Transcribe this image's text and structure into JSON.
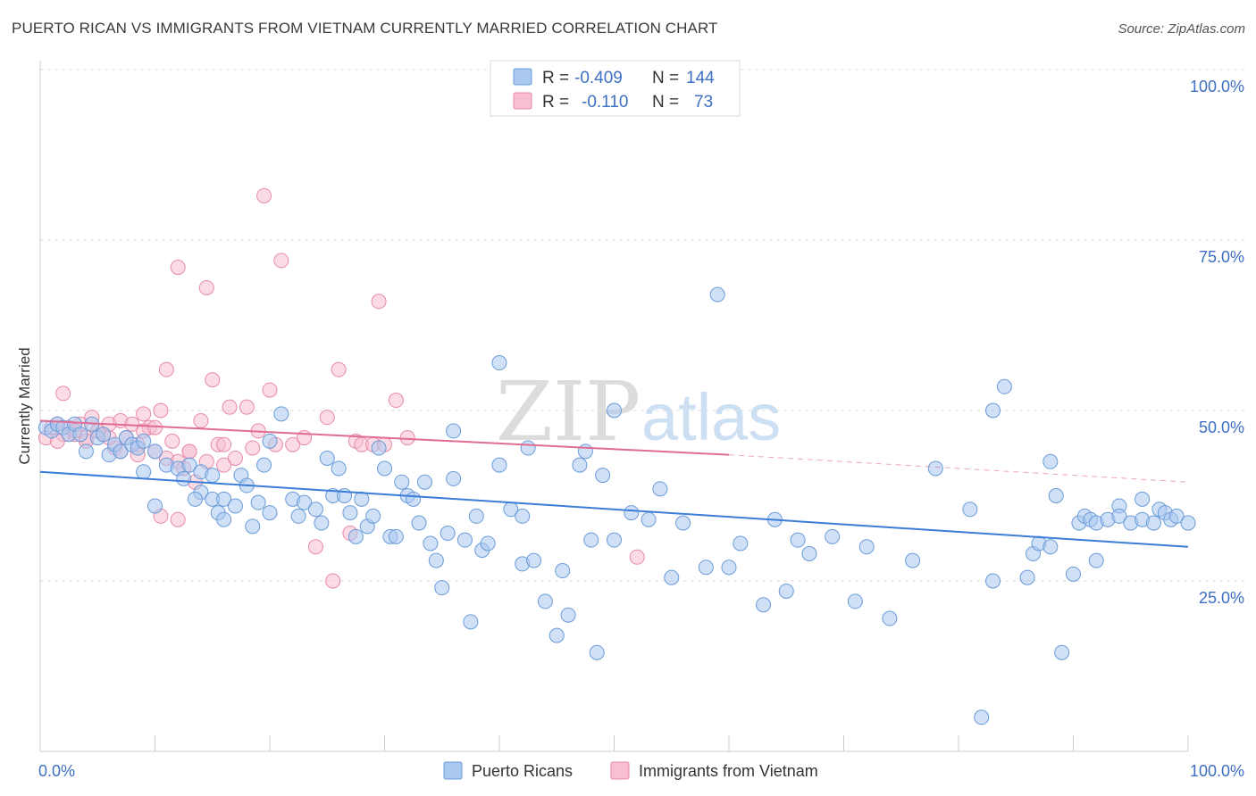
{
  "header": {
    "title": "PUERTO RICAN VS IMMIGRANTS FROM VIETNAM CURRENTLY MARRIED CORRELATION CHART",
    "source": "Source: ZipAtlas.com"
  },
  "watermark": {
    "zip": "ZIP",
    "atlas": "atlas"
  },
  "legend_top": {
    "rows": [
      {
        "r_label": "R =",
        "r_value": "-0.409",
        "n_label": "N =",
        "n_value": "144",
        "color": "#a9c8f0",
        "stroke": "#6a9bd8"
      },
      {
        "r_label": "R =",
        "r_value": "-0.110",
        "n_label": "N =",
        "n_value": "73",
        "color": "#f7bfd0",
        "stroke": "#e88aa8"
      }
    ]
  },
  "legend_bottom": {
    "items": [
      {
        "label": "Puerto Ricans",
        "color": "#a9c8f0",
        "stroke": "#6a9bd8"
      },
      {
        "label": "Immigrants from Vietnam",
        "color": "#f7bfd0",
        "stroke": "#e88aa8"
      }
    ]
  },
  "chart_data": {
    "type": "scatter",
    "title": "PUERTO RICAN VS IMMIGRANTS FROM VIETNAM CURRENTLY MARRIED CORRELATION CHART",
    "ylabel": "Currently Married",
    "xlim": [
      0,
      100
    ],
    "ylim": [
      0,
      100
    ],
    "x_tick_labels": [
      "0.0%",
      "100.0%"
    ],
    "y_tick_labels": [
      "25.0%",
      "50.0%",
      "75.0%",
      "100.0%"
    ],
    "y_ticks": [
      25,
      50,
      75,
      100
    ],
    "grid": true,
    "colors": {
      "blue": "#3b7dd8",
      "pink": "#e06b93",
      "blue_fill": "#a9c8f0",
      "pink_fill": "#f7bfd0"
    },
    "series": [
      {
        "name": "Puerto Ricans",
        "trend": {
          "x0": 0,
          "y0": 41.0,
          "x1": 100,
          "y1": 30.0
        },
        "points": [
          [
            0.5,
            47.5
          ],
          [
            1,
            47
          ],
          [
            1.5,
            48
          ],
          [
            2,
            47.5
          ],
          [
            2.5,
            46.5
          ],
          [
            3,
            48
          ],
          [
            3.5,
            46.5
          ],
          [
            4,
            44
          ],
          [
            4.5,
            48
          ],
          [
            5,
            46
          ],
          [
            5.5,
            46.5
          ],
          [
            6,
            43.5
          ],
          [
            6.5,
            45
          ],
          [
            7,
            44
          ],
          [
            7.5,
            46
          ],
          [
            8,
            45
          ],
          [
            8.5,
            44.5
          ],
          [
            9,
            41
          ],
          [
            9,
            45.5
          ],
          [
            10,
            44
          ],
          [
            10,
            36
          ],
          [
            11,
            42
          ],
          [
            12,
            41.5
          ],
          [
            12.5,
            40
          ],
          [
            13,
            42
          ],
          [
            14,
            41
          ],
          [
            14,
            38
          ],
          [
            15,
            40.5
          ],
          [
            13.5,
            37
          ],
          [
            15,
            37
          ],
          [
            15.5,
            35
          ],
          [
            16,
            37
          ],
          [
            16,
            34
          ],
          [
            17,
            36
          ],
          [
            17.5,
            40.5
          ],
          [
            18,
            39
          ],
          [
            18.5,
            33
          ],
          [
            19,
            36.5
          ],
          [
            19.5,
            42
          ],
          [
            20,
            45.5
          ],
          [
            20,
            35
          ],
          [
            21,
            49.5
          ],
          [
            22,
            37
          ],
          [
            22.5,
            34.5
          ],
          [
            23,
            36.5
          ],
          [
            24,
            35.5
          ],
          [
            24.5,
            33.5
          ],
          [
            25,
            43
          ],
          [
            25.5,
            37.5
          ],
          [
            26,
            41.5
          ],
          [
            26.5,
            37.5
          ],
          [
            27,
            35
          ],
          [
            27.5,
            31.5
          ],
          [
            28,
            37
          ],
          [
            28.5,
            33
          ],
          [
            29,
            34.5
          ],
          [
            29.5,
            44.5
          ],
          [
            30,
            41.5
          ],
          [
            30.5,
            31.5
          ],
          [
            31,
            31.5
          ],
          [
            31.5,
            39.5
          ],
          [
            32,
            37.5
          ],
          [
            32.5,
            37
          ],
          [
            33,
            33.5
          ],
          [
            33.5,
            39.5
          ],
          [
            34,
            30.5
          ],
          [
            34.5,
            28
          ],
          [
            35,
            24
          ],
          [
            35.5,
            32
          ],
          [
            36,
            40
          ],
          [
            36,
            47
          ],
          [
            37,
            31
          ],
          [
            37.5,
            19
          ],
          [
            38,
            34.5
          ],
          [
            38.5,
            29.5
          ],
          [
            39,
            30.5
          ],
          [
            40,
            42
          ],
          [
            40,
            57
          ],
          [
            41,
            35.5
          ],
          [
            42,
            27.5
          ],
          [
            42,
            34.5
          ],
          [
            42.5,
            44.5
          ],
          [
            43,
            28
          ],
          [
            44,
            22
          ],
          [
            45,
            17
          ],
          [
            45.5,
            26.5
          ],
          [
            46,
            20
          ],
          [
            47,
            42
          ],
          [
            47.5,
            44
          ],
          [
            48,
            31
          ],
          [
            48.5,
            14.5
          ],
          [
            49,
            40.5
          ],
          [
            50,
            50
          ],
          [
            50,
            31
          ],
          [
            51.5,
            35
          ],
          [
            53,
            34
          ],
          [
            54,
            38.5
          ],
          [
            55,
            25.5
          ],
          [
            56,
            33.5
          ],
          [
            58,
            27
          ],
          [
            59,
            67
          ],
          [
            60,
            27
          ],
          [
            61,
            30.5
          ],
          [
            63,
            21.5
          ],
          [
            64,
            34
          ],
          [
            65,
            23.5
          ],
          [
            66,
            31
          ],
          [
            67,
            29
          ],
          [
            69,
            31.5
          ],
          [
            71,
            22
          ],
          [
            72,
            30
          ],
          [
            74,
            19.5
          ],
          [
            76,
            28
          ],
          [
            78,
            41.5
          ],
          [
            81,
            35.5
          ],
          [
            82,
            5
          ],
          [
            83,
            50
          ],
          [
            83,
            25
          ],
          [
            84,
            53.5
          ],
          [
            86,
            25.5
          ],
          [
            86.5,
            29
          ],
          [
            87,
            30.5
          ],
          [
            88,
            42.5
          ],
          [
            88,
            30
          ],
          [
            88.5,
            37.5
          ],
          [
            89,
            14.5
          ],
          [
            90,
            26
          ],
          [
            90.5,
            33.5
          ],
          [
            91,
            34.5
          ],
          [
            91.5,
            34
          ],
          [
            92,
            28
          ],
          [
            92,
            33.5
          ],
          [
            93,
            34
          ],
          [
            94,
            36
          ],
          [
            94,
            34.5
          ],
          [
            95,
            33.5
          ],
          [
            96,
            34
          ],
          [
            96,
            37
          ],
          [
            97,
            33.5
          ],
          [
            97.5,
            35.5
          ],
          [
            98,
            35
          ],
          [
            98.5,
            34
          ],
          [
            99,
            34.5
          ],
          [
            100,
            33.5
          ]
        ]
      },
      {
        "name": "Immigrants from Vietnam",
        "trend": {
          "x0": 0,
          "y0": 48.5,
          "x1": 60,
          "y1": 43.5,
          "dash_x1": 100,
          "dash_y1": 39.5
        },
        "points": [
          [
            0.5,
            46
          ],
          [
            1,
            47.5
          ],
          [
            1.5,
            48
          ],
          [
            2,
            52.5
          ],
          [
            2.5,
            47.5
          ],
          [
            3,
            46.5
          ],
          [
            3.5,
            48
          ],
          [
            4,
            46
          ],
          [
            4.5,
            49
          ],
          [
            5,
            47
          ],
          [
            5.5,
            46.5
          ],
          [
            6,
            48
          ],
          [
            6.5,
            44.5
          ],
          [
            7,
            48.5
          ],
          [
            7.5,
            46
          ],
          [
            8,
            48
          ],
          [
            8.5,
            45
          ],
          [
            9,
            49.5
          ],
          [
            9.5,
            47.5
          ],
          [
            10,
            44
          ],
          [
            10.5,
            50
          ],
          [
            11,
            43
          ],
          [
            11,
            56
          ],
          [
            11.5,
            45.5
          ],
          [
            12,
            42.5
          ],
          [
            12.5,
            41.5
          ],
          [
            13,
            44
          ],
          [
            13.5,
            39.5
          ],
          [
            14,
            48.5
          ],
          [
            14.5,
            42.5
          ],
          [
            15,
            54.5
          ],
          [
            15.5,
            45
          ],
          [
            16,
            45
          ],
          [
            16.5,
            50.5
          ],
          [
            17,
            43
          ],
          [
            18,
            50.5
          ],
          [
            18.5,
            44.5
          ],
          [
            19,
            47
          ],
          [
            19.5,
            81.5
          ],
          [
            20,
            53
          ],
          [
            20.5,
            45
          ],
          [
            21,
            72
          ],
          [
            22,
            45
          ],
          [
            23,
            46
          ],
          [
            24,
            30
          ],
          [
            25,
            49
          ],
          [
            25.5,
            25
          ],
          [
            26,
            56
          ],
          [
            27,
            32
          ],
          [
            27.5,
            45.5
          ],
          [
            28,
            45
          ],
          [
            29,
            45
          ],
          [
            29.5,
            66
          ],
          [
            30,
            45
          ],
          [
            31,
            51.5
          ],
          [
            32,
            46
          ],
          [
            12,
            71
          ],
          [
            14.5,
            68
          ],
          [
            10.5,
            34.5
          ],
          [
            12,
            34
          ],
          [
            8.5,
            43.5
          ],
          [
            7,
            44
          ],
          [
            6,
            46
          ],
          [
            5,
            47
          ],
          [
            4,
            45.5
          ],
          [
            3,
            47
          ],
          [
            2,
            46.5
          ],
          [
            1.5,
            45.5
          ],
          [
            13,
            44
          ],
          [
            16,
            42
          ],
          [
            9,
            47
          ],
          [
            10,
            47.5
          ],
          [
            52,
            28.5
          ]
        ]
      }
    ]
  }
}
